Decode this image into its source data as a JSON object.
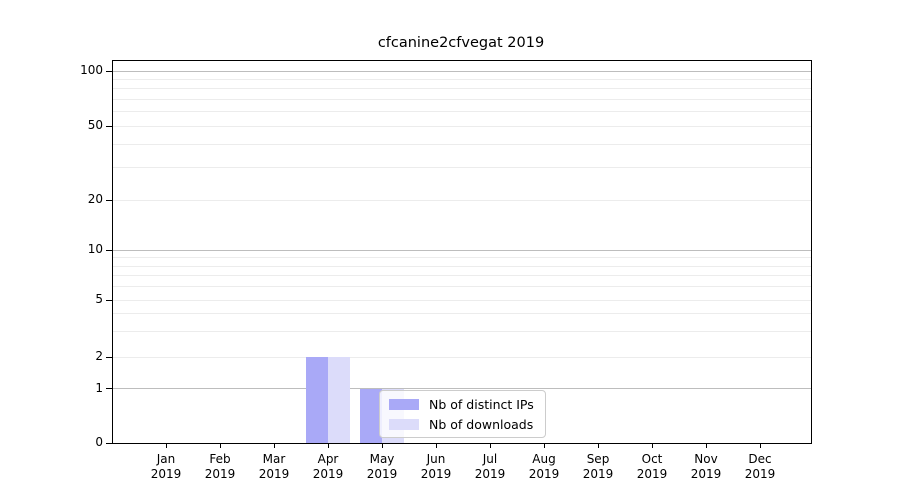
{
  "chart_data": {
    "type": "bar",
    "title": "cfcanine2cfvegat 2019",
    "categories": [
      "Jan 2019",
      "Feb 2019",
      "Mar 2019",
      "Apr 2019",
      "May 2019",
      "Jun 2019",
      "Jul 2019",
      "Aug 2019",
      "Sep 2019",
      "Oct 2019",
      "Nov 2019",
      "Dec 2019"
    ],
    "series": [
      {
        "name": "Nb of distinct IPs",
        "color": "#a9a9f7",
        "values": [
          0,
          0,
          0,
          2,
          1,
          0,
          0,
          0,
          0,
          0,
          0,
          0
        ]
      },
      {
        "name": "Nb of downloads",
        "color": "#dcdcfa",
        "values": [
          0,
          0,
          0,
          2,
          1,
          0,
          0,
          0,
          0,
          0,
          0,
          0
        ]
      }
    ],
    "yscale": "log-like with 0 baseline",
    "yticks": [
      0,
      1,
      2,
      5,
      10,
      20,
      50,
      100
    ],
    "ylim": [
      0,
      110
    ],
    "grid": "horizontal major and minor lines",
    "legend_position": "lower center inside plot"
  },
  "colors": {
    "axis": "#000000",
    "major_grid": "#bdbdbd",
    "minor_grid": "#ececec",
    "legend_border": "#cccccc",
    "background": "#ffffff"
  }
}
